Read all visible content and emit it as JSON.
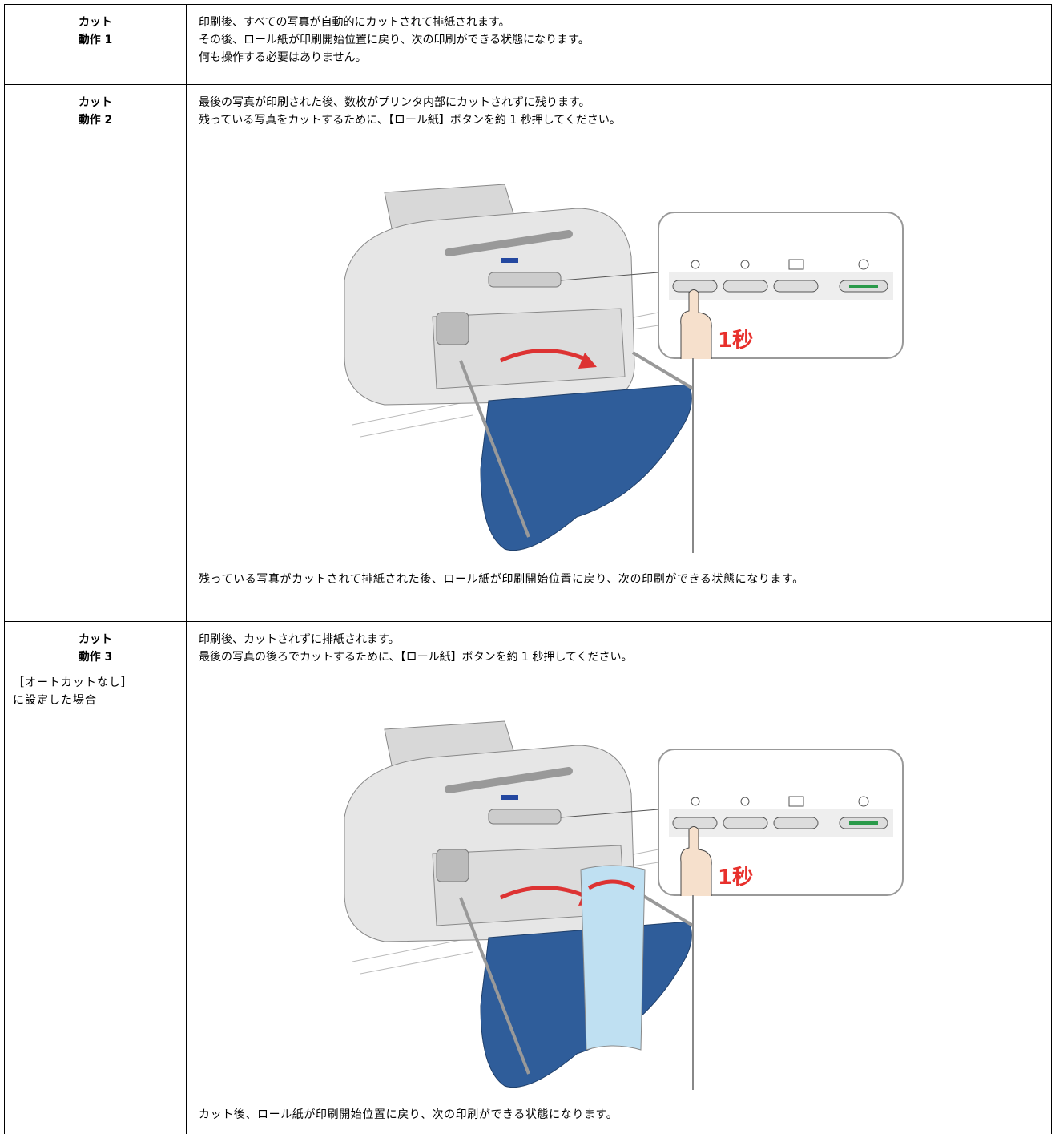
{
  "rows": [
    {
      "label": [
        "カット",
        "動作 1"
      ],
      "text": [
        "印刷後、すべての写真が自動的にカットされて排紙されます。",
        "その後、ロール紙が印刷開始位置に戻り、次の印刷ができる状態になります。",
        "何も操作する必要はありません。"
      ]
    },
    {
      "label": [
        "カット",
        "動作 2"
      ],
      "text": [
        "最後の写真が印刷された後、数枚がプリンタ内部にカットされずに残ります。",
        "残っている写真をカットするために、【ロール紙】ボタンを約 1 秒押してください。"
      ],
      "figure_label": "1秒",
      "after": "残っている写真がカットされて排紙された後、ロール紙が印刷開始位置に戻り、次の印刷ができる状態になります。"
    },
    {
      "label": [
        "カット",
        "動作 3"
      ],
      "note": [
        "［オートカットなし］",
        "に設定した場合"
      ],
      "text": [
        "印刷後、カットされずに排紙されます。",
        "最後の写真の後ろでカットするために、【ロール紙】ボタンを約 1 秒押してください。"
      ],
      "figure_label": "1秒",
      "after": "カット後、ロール紙が印刷開始位置に戻り、次の印刷ができる状態になります。"
    }
  ]
}
